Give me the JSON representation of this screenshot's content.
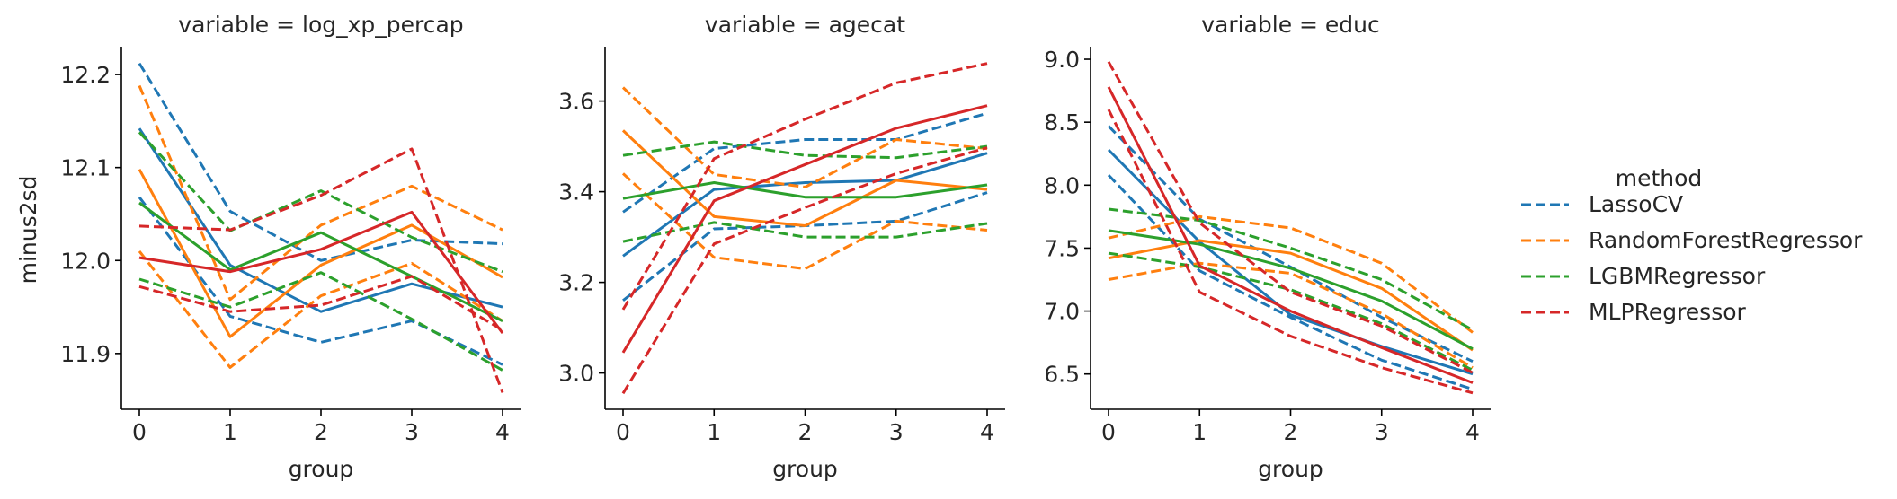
{
  "figure": {
    "ylabel": "minus2sd",
    "legend_title": "method"
  },
  "colors": {
    "LassoCV": "#1f77b4",
    "RandomForestRegressor": "#ff7f0e",
    "LGBMRegressor": "#2ca02c",
    "MLPRegressor": "#d62728"
  },
  "legend": [
    "LassoCV",
    "RandomForestRegressor",
    "LGBMRegressor",
    "MLPRegressor"
  ],
  "chart_data": [
    {
      "type": "line",
      "title": "variable = log_xp_percap",
      "xlabel": "group",
      "ylabel": "minus2sd",
      "x": [
        0,
        1,
        2,
        3,
        4
      ],
      "ylim": [
        11.84,
        12.23
      ],
      "yticks": [
        11.9,
        12.0,
        12.1,
        12.2
      ],
      "ytick_labels": [
        "11.9",
        "12.0",
        "12.1",
        "12.2"
      ],
      "xticks": [
        "0",
        "1",
        "2",
        "3",
        "4"
      ],
      "series": [
        {
          "method": "LassoCV",
          "style": "dashed",
          "values": [
            12.212,
            12.053,
            12.0,
            12.022,
            12.018
          ]
        },
        {
          "method": "LassoCV",
          "style": "solid",
          "values": [
            12.142,
            11.995,
            11.945,
            11.975,
            11.95
          ]
        },
        {
          "method": "LassoCV",
          "style": "dashed",
          "values": [
            12.068,
            11.94,
            11.912,
            11.935,
            11.888
          ]
        },
        {
          "method": "RandomForestRegressor",
          "style": "dashed",
          "values": [
            12.188,
            11.958,
            12.038,
            12.08,
            12.033
          ]
        },
        {
          "method": "RandomForestRegressor",
          "style": "solid",
          "values": [
            12.098,
            11.918,
            11.995,
            12.038,
            11.982
          ]
        },
        {
          "method": "RandomForestRegressor",
          "style": "dashed",
          "values": [
            12.01,
            11.885,
            11.962,
            11.997,
            11.935
          ]
        },
        {
          "method": "LGBMRegressor",
          "style": "dashed",
          "values": [
            12.138,
            12.032,
            12.075,
            12.025,
            11.988
          ]
        },
        {
          "method": "LGBMRegressor",
          "style": "solid",
          "values": [
            12.062,
            11.99,
            12.03,
            11.983,
            11.935
          ]
        },
        {
          "method": "LGBMRegressor",
          "style": "dashed",
          "values": [
            11.98,
            11.95,
            11.987,
            11.937,
            11.882
          ]
        },
        {
          "method": "MLPRegressor",
          "style": "dashed",
          "values": [
            12.037,
            12.033,
            12.07,
            12.12,
            11.858
          ]
        },
        {
          "method": "MLPRegressor",
          "style": "solid",
          "values": [
            12.003,
            11.988,
            12.012,
            12.052,
            11.922
          ]
        },
        {
          "method": "MLPRegressor",
          "style": "dashed",
          "values": [
            11.972,
            11.945,
            11.952,
            11.983,
            11.925
          ]
        }
      ]
    },
    {
      "type": "line",
      "title": "variable = agecat",
      "xlabel": "group",
      "ylabel": "",
      "x": [
        0,
        1,
        2,
        3,
        4
      ],
      "ylim": [
        2.92,
        3.72
      ],
      "yticks": [
        3.0,
        3.2,
        3.4,
        3.6
      ],
      "ytick_labels": [
        "3.0",
        "3.2",
        "3.4",
        "3.6"
      ],
      "xticks": [
        "0",
        "1",
        "2",
        "3",
        "4"
      ],
      "series": [
        {
          "method": "LassoCV",
          "style": "dashed",
          "values": [
            3.355,
            3.495,
            3.515,
            3.515,
            3.573
          ]
        },
        {
          "method": "LassoCV",
          "style": "solid",
          "values": [
            3.258,
            3.405,
            3.42,
            3.425,
            3.485
          ]
        },
        {
          "method": "LassoCV",
          "style": "dashed",
          "values": [
            3.16,
            3.318,
            3.325,
            3.335,
            3.398
          ]
        },
        {
          "method": "RandomForestRegressor",
          "style": "dashed",
          "values": [
            3.63,
            3.438,
            3.41,
            3.515,
            3.495
          ]
        },
        {
          "method": "RandomForestRegressor",
          "style": "solid",
          "values": [
            3.535,
            3.345,
            3.325,
            3.425,
            3.405
          ]
        },
        {
          "method": "RandomForestRegressor",
          "style": "dashed",
          "values": [
            3.44,
            3.255,
            3.23,
            3.335,
            3.315
          ]
        },
        {
          "method": "LGBMRegressor",
          "style": "dashed",
          "values": [
            3.48,
            3.51,
            3.48,
            3.475,
            3.5
          ]
        },
        {
          "method": "LGBMRegressor",
          "style": "solid",
          "values": [
            3.385,
            3.42,
            3.388,
            3.388,
            3.415
          ]
        },
        {
          "method": "LGBMRegressor",
          "style": "dashed",
          "values": [
            3.29,
            3.332,
            3.3,
            3.3,
            3.33
          ]
        },
        {
          "method": "MLPRegressor",
          "style": "dashed",
          "values": [
            3.14,
            3.473,
            3.56,
            3.64,
            3.683
          ]
        },
        {
          "method": "MLPRegressor",
          "style": "solid",
          "values": [
            3.045,
            3.38,
            3.46,
            3.54,
            3.59
          ]
        },
        {
          "method": "MLPRegressor",
          "style": "dashed",
          "values": [
            2.955,
            3.285,
            3.365,
            3.44,
            3.497
          ]
        }
      ]
    },
    {
      "type": "line",
      "title": "variable = educ",
      "xlabel": "group",
      "ylabel": "",
      "x": [
        0,
        1,
        2,
        3,
        4
      ],
      "ylim": [
        6.22,
        9.1
      ],
      "yticks": [
        6.5,
        7.0,
        7.5,
        8.0,
        8.5,
        9.0
      ],
      "ytick_labels": [
        "6.5",
        "7.0",
        "7.5",
        "8.0",
        "8.5",
        "9.0"
      ],
      "xticks": [
        "0",
        "1",
        "2",
        "3",
        "4"
      ],
      "series": [
        {
          "method": "LassoCV",
          "style": "dashed",
          "values": [
            8.47,
            7.73,
            7.35,
            6.95,
            6.6
          ]
        },
        {
          "method": "LassoCV",
          "style": "solid",
          "values": [
            8.28,
            7.55,
            6.97,
            6.72,
            6.5
          ]
        },
        {
          "method": "LassoCV",
          "style": "dashed",
          "values": [
            8.08,
            7.32,
            6.95,
            6.61,
            6.38
          ]
        },
        {
          "method": "RandomForestRegressor",
          "style": "dashed",
          "values": [
            7.58,
            7.75,
            7.66,
            7.38,
            6.83
          ]
        },
        {
          "method": "RandomForestRegressor",
          "style": "solid",
          "values": [
            7.42,
            7.56,
            7.46,
            7.18,
            6.69
          ]
        },
        {
          "method": "RandomForestRegressor",
          "style": "dashed",
          "values": [
            7.25,
            7.38,
            7.3,
            6.98,
            6.55
          ]
        },
        {
          "method": "LGBMRegressor",
          "style": "dashed",
          "values": [
            7.81,
            7.72,
            7.5,
            7.25,
            6.85
          ]
        },
        {
          "method": "LGBMRegressor",
          "style": "solid",
          "values": [
            7.64,
            7.53,
            7.34,
            7.08,
            6.7
          ]
        },
        {
          "method": "LGBMRegressor",
          "style": "dashed",
          "values": [
            7.46,
            7.35,
            7.17,
            6.9,
            6.53
          ]
        },
        {
          "method": "MLPRegressor",
          "style": "dashed",
          "values": [
            8.98,
            7.7,
            7.15,
            6.88,
            6.51
          ]
        },
        {
          "method": "MLPRegressor",
          "style": "solid",
          "values": [
            8.78,
            7.36,
            7.0,
            6.71,
            6.43
          ]
        },
        {
          "method": "MLPRegressor",
          "style": "dashed",
          "values": [
            8.6,
            7.15,
            6.8,
            6.55,
            6.35
          ]
        }
      ]
    }
  ]
}
